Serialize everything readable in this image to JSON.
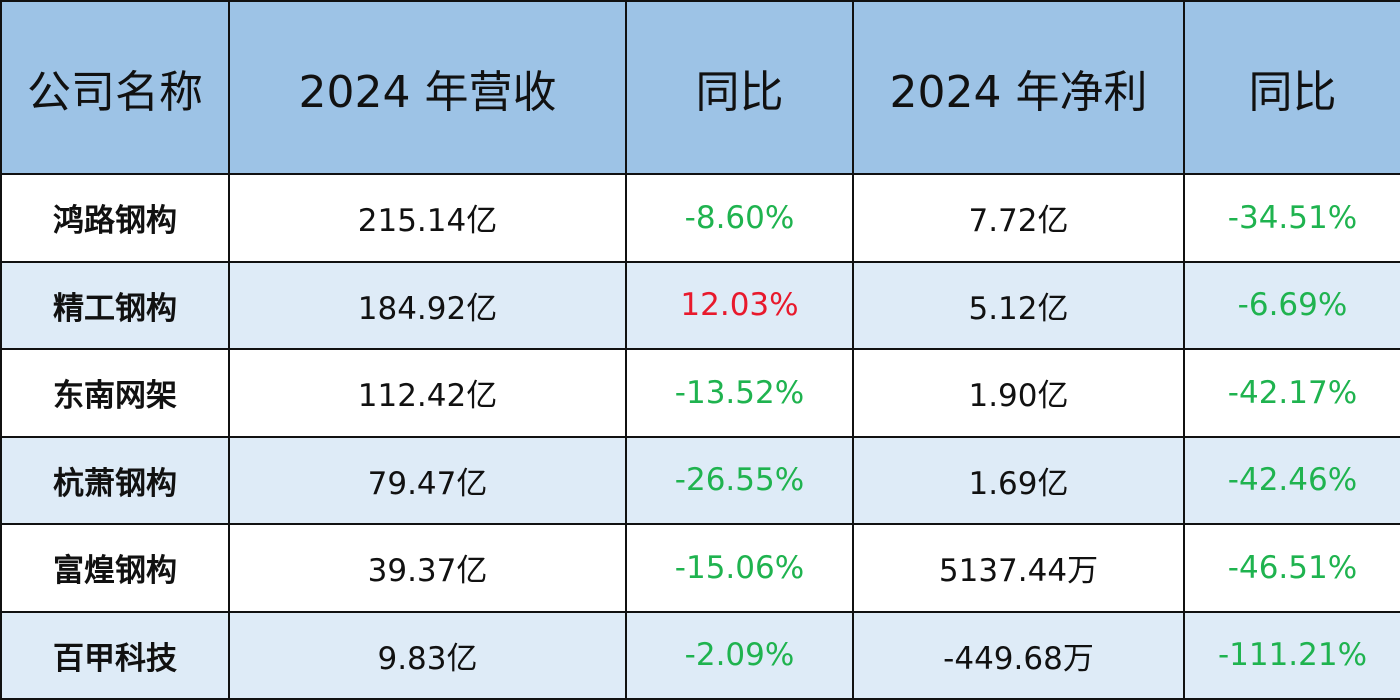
{
  "table": {
    "header": [
      "公司名称",
      "2024 年营收",
      "同比",
      "2024 年净利",
      "同比"
    ],
    "rows": [
      [
        "鸿路钢构",
        "215.14亿",
        "-8.60%",
        "7.72亿",
        "-34.51%"
      ],
      [
        "精工钢构",
        "184.92亿",
        "12.03%",
        "5.12亿",
        "-6.69%"
      ],
      [
        "东南网架",
        "112.42亿",
        "-13.52%",
        "1.90亿",
        "-42.17%"
      ],
      [
        "杭萧钢构",
        "79.47亿",
        "-26.55%",
        "1.69亿",
        "-42.46%"
      ],
      [
        "富煌钢构",
        "39.37亿",
        "-15.06%",
        "5137.44万",
        "-46.51%"
      ],
      [
        "百甲科技",
        "9.83亿",
        "-2.09%",
        "-449.68万",
        "-111.21%"
      ]
    ]
  }
}
